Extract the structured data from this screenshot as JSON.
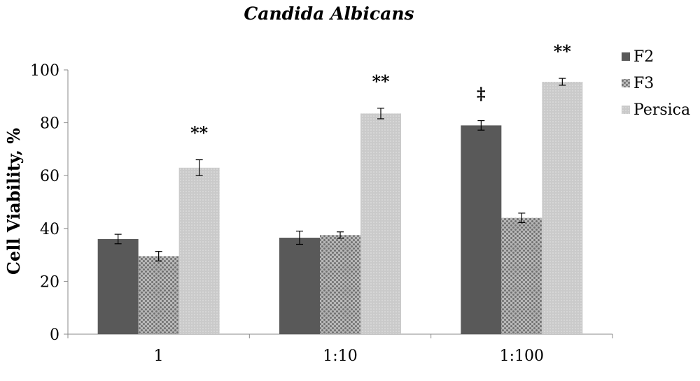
{
  "chart_data": {
    "type": "bar",
    "title": "Candida Albicans",
    "xlabel": "",
    "ylabel": "Cell Viability, %",
    "ylim": [
      0,
      100
    ],
    "yticks": [
      0,
      20,
      40,
      60,
      80,
      100
    ],
    "categories": [
      "1",
      "1:10",
      "1:100"
    ],
    "series": [
      {
        "name": "F2",
        "values": [
          36,
          36.5,
          79
        ],
        "errors": [
          1.8,
          2.5,
          1.8
        ],
        "markers": [
          "",
          "",
          "‡"
        ],
        "color": "#595959",
        "pattern": "solid"
      },
      {
        "name": "F3",
        "values": [
          29.5,
          37.5,
          44
        ],
        "errors": [
          1.8,
          1.2,
          1.8
        ],
        "markers": [
          "",
          "",
          ""
        ],
        "color": "#8c8c8c",
        "pattern": "checker"
      },
      {
        "name": "Persica",
        "values": [
          63,
          83.5,
          95.5
        ],
        "errors": [
          3,
          2,
          1.3
        ],
        "markers": [
          "**",
          "**",
          "**"
        ],
        "color": "#c8c8c8",
        "pattern": "dotted"
      }
    ],
    "legend_position": "top-right",
    "grid": false
  }
}
